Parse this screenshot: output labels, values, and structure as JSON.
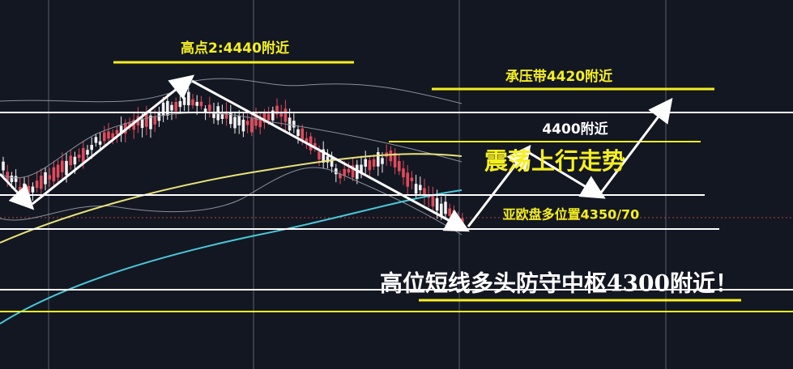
{
  "annotations": {
    "high_point": "高点2:4440附近",
    "resistance": "承压带4420附近",
    "level_4400": "4400附近",
    "trend": "震荡上行走势",
    "asia_europe": "亚欧盘多位置4350/70",
    "defense": "高位短线多头防守中枢4300附近！"
  }
}
